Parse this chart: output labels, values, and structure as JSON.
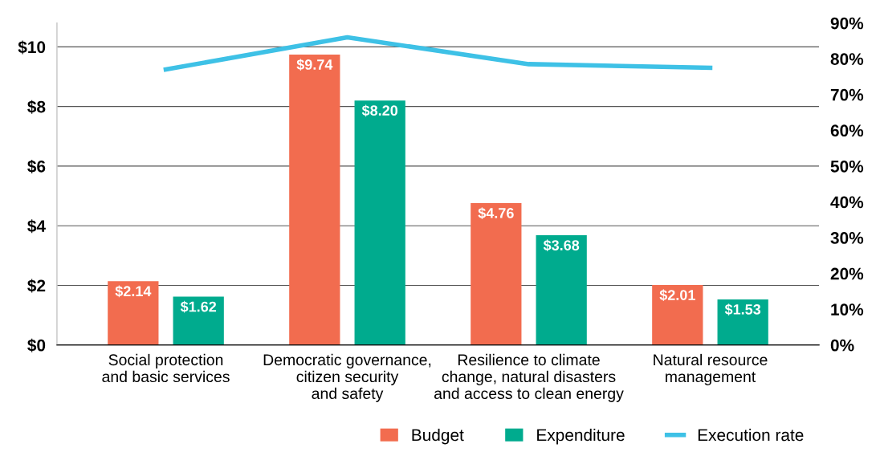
{
  "chart_data": {
    "type": "bar",
    "categories": [
      "Social protection\nand basic services",
      "Democratic governance,\ncitizen security\nand safety",
      "Resilience to climate\nchange, natural disasters\nand access to clean energy",
      "Natural resource\nmanagement"
    ],
    "series": [
      {
        "name": "Budget",
        "color": "#f26c4f",
        "values": [
          2.14,
          9.74,
          4.76,
          2.01
        ],
        "value_labels": [
          "$2.14",
          "$9.74",
          "$4.76",
          "$2.01"
        ]
      },
      {
        "name": "Expenditure",
        "color": "#00ab8e",
        "values": [
          1.62,
          8.2,
          3.68,
          1.53
        ],
        "value_labels": [
          "$1.62",
          "$8.20",
          "$3.68",
          "$1.53"
        ]
      },
      {
        "name": "Execution rate",
        "type": "line",
        "axis": "y2",
        "color": "#3ec1e6",
        "values": [
          77,
          86,
          78.5,
          77.5
        ]
      }
    ],
    "ylim": [
      0,
      10.8
    ],
    "yticks": [
      {
        "value": 0,
        "label": "$0"
      },
      {
        "value": 2,
        "label": "$2"
      },
      {
        "value": 4,
        "label": "$4"
      },
      {
        "value": 6,
        "label": "$6"
      },
      {
        "value": 8,
        "label": "$8"
      },
      {
        "value": 10,
        "label": "$10"
      }
    ],
    "y2lim": [
      0,
      90
    ],
    "y2ticks": [
      {
        "value": 0,
        "label": "0%"
      },
      {
        "value": 10,
        "label": "10%"
      },
      {
        "value": 20,
        "label": "20%"
      },
      {
        "value": 30,
        "label": "30%"
      },
      {
        "value": 40,
        "label": "40%"
      },
      {
        "value": 50,
        "label": "50%"
      },
      {
        "value": 60,
        "label": "60%"
      },
      {
        "value": 70,
        "label": "70%"
      },
      {
        "value": 80,
        "label": "80%"
      },
      {
        "value": 90,
        "label": "90%"
      }
    ],
    "grid": "y",
    "legend": "bottom right",
    "marker": "none"
  }
}
